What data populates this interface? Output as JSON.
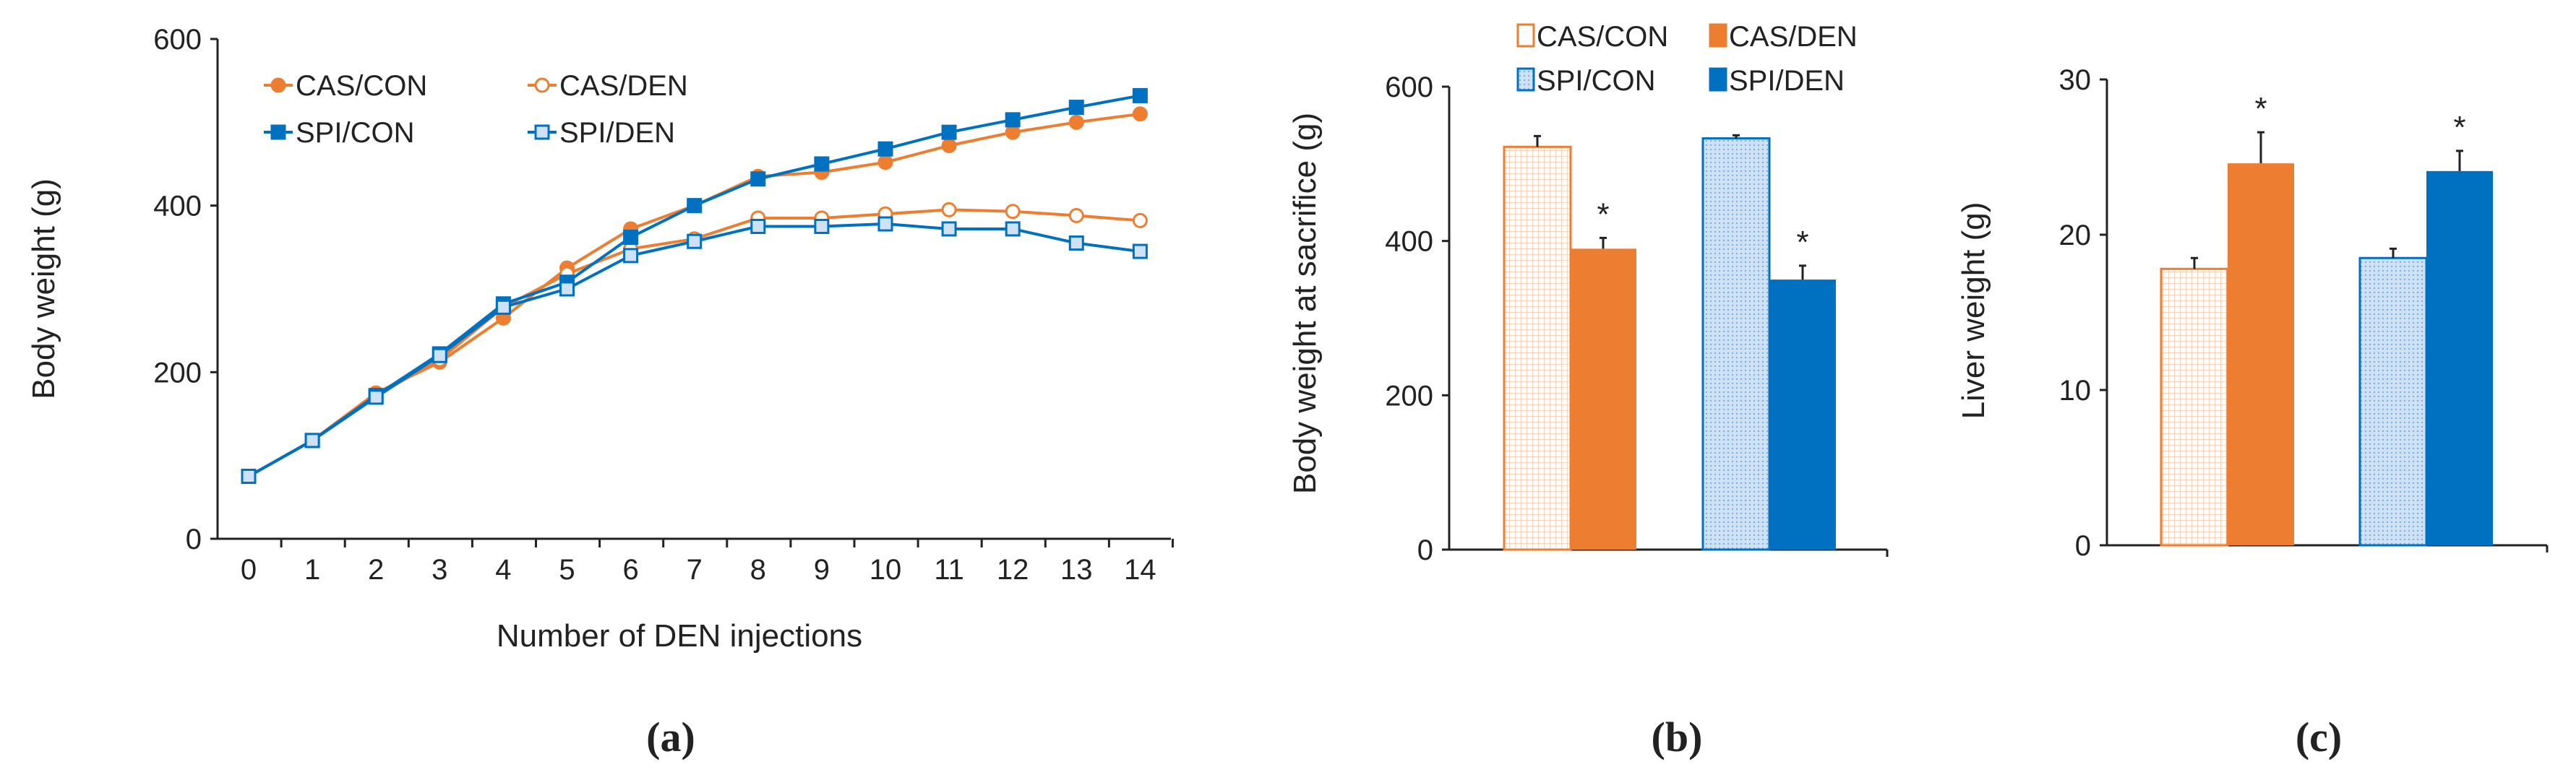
{
  "colors": {
    "orange": "#ED7D31",
    "blue": "#0070C0"
  },
  "chart_data": [
    {
      "type": "line",
      "panel_label": "(a)",
      "xlabel": "Number of DEN injections",
      "ylabel": "Body weight (g)",
      "x": [
        0,
        1,
        2,
        3,
        4,
        5,
        6,
        7,
        8,
        9,
        10,
        11,
        12,
        13,
        14
      ],
      "ylim": [
        0,
        600
      ],
      "yticks": [
        "0",
        "200",
        "400",
        "600"
      ],
      "legend_placement": "top-left",
      "series": [
        {
          "name": "CAS/CON",
          "color": "#ED7D31",
          "marker": "filled-circle",
          "values": [
            75,
            118,
            175,
            212,
            265,
            325,
            372,
            400,
            435,
            440,
            452,
            472,
            488,
            500,
            510
          ]
        },
        {
          "name": "CAS/DEN",
          "color": "#ED7D31",
          "marker": "open-circle",
          "values": [
            75,
            118,
            172,
            215,
            278,
            318,
            348,
            360,
            385,
            385,
            390,
            395,
            393,
            388,
            382
          ]
        },
        {
          "name": "SPI/CON",
          "color": "#0070C0",
          "marker": "filled-square",
          "values": [
            75,
            118,
            172,
            222,
            282,
            308,
            362,
            400,
            432,
            450,
            468,
            488,
            503,
            518,
            532
          ]
        },
        {
          "name": "SPI/DEN",
          "color": "#0070C0",
          "marker": "open-square",
          "values": [
            75,
            118,
            170,
            220,
            278,
            300,
            340,
            357,
            375,
            375,
            378,
            372,
            372,
            355,
            345
          ]
        }
      ]
    },
    {
      "type": "bar",
      "panel_label": "(b)",
      "ylabel": "Body weight at sacrifice (g)",
      "ylim": [
        0,
        600
      ],
      "yticks": [
        "0",
        "200",
        "400",
        "600"
      ],
      "legend_placement": "top",
      "series": [
        {
          "name": "CAS/CON",
          "color": "#ED7D31",
          "fill": "pattern",
          "value": 522,
          "error": 14,
          "significance": ""
        },
        {
          "name": "CAS/DEN",
          "color": "#ED7D31",
          "fill": "solid",
          "value": 390,
          "error": 14,
          "significance": "*"
        },
        {
          "name": "SPI/CON",
          "color": "#0070C0",
          "fill": "pattern",
          "value": 533,
          "error": 4,
          "significance": ""
        },
        {
          "name": "SPI/DEN",
          "color": "#0070C0",
          "fill": "solid",
          "value": 350,
          "error": 18,
          "significance": "*"
        }
      ]
    },
    {
      "type": "bar",
      "panel_label": "(c)",
      "ylabel": "Liver weight (g)",
      "ylim": [
        0,
        30
      ],
      "yticks": [
        "0",
        "10",
        "20",
        "30"
      ],
      "series": [
        {
          "name": "CAS/CON",
          "color": "#ED7D31",
          "fill": "pattern",
          "value": 17.8,
          "error": 0.7,
          "significance": ""
        },
        {
          "name": "CAS/DEN",
          "color": "#ED7D31",
          "fill": "solid",
          "value": 24.6,
          "error": 2.0,
          "significance": "*"
        },
        {
          "name": "SPI/CON",
          "color": "#0070C0",
          "fill": "pattern",
          "value": 18.5,
          "error": 0.6,
          "significance": ""
        },
        {
          "name": "SPI/DEN",
          "color": "#0070C0",
          "fill": "solid",
          "value": 24.1,
          "error": 1.3,
          "significance": "*"
        }
      ]
    }
  ]
}
